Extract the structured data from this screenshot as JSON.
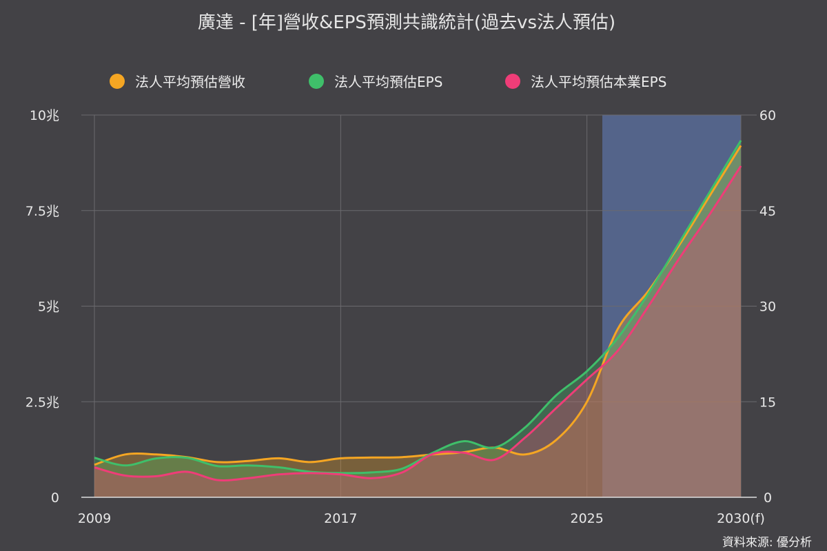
{
  "chart_data": {
    "type": "line",
    "title": "廣達 - [年]營收&EPS預測共識統計(過去vs法人預估)",
    "source": "資料來源: 優分析",
    "colors": {
      "background": "#434246",
      "grid": "#6b6a6e",
      "forecast_band": "#54648a",
      "revenue": "#f5a623",
      "eps": "#3fbf6a",
      "core_eps": "#ef3d78"
    },
    "legend": {
      "placement": "top-center",
      "items": [
        {
          "label": "法人平均預估營收",
          "color": "#f5a623"
        },
        {
          "label": "法人平均預估EPS",
          "color": "#3fbf6a"
        },
        {
          "label": "法人平均預估本業EPS",
          "color": "#ef3d78"
        }
      ]
    },
    "x_ticks": [
      {
        "label": "2009",
        "value": 2009
      },
      {
        "label": "2017",
        "value": 2017
      },
      {
        "label": "2025",
        "value": 2025
      },
      {
        "label": "2030(f)",
        "value": 2030
      }
    ],
    "xlim": [
      2009,
      2030
    ],
    "forecast_range": [
      2025.5,
      2030
    ],
    "y_left": {
      "ticks": [
        "0",
        "2.5兆",
        "5兆",
        "7.5兆",
        "10兆"
      ],
      "values": [
        0,
        2.5,
        5,
        7.5,
        10
      ],
      "lim": [
        0,
        10
      ],
      "unit": "兆"
    },
    "y_right": {
      "ticks": [
        "0",
        "15",
        "30",
        "45",
        "60"
      ],
      "values": [
        0,
        15,
        30,
        45,
        60
      ],
      "lim": [
        0,
        60
      ]
    },
    "series": [
      {
        "name": "法人平均預估營收",
        "axis": "left",
        "x": [
          2009,
          2010,
          2011,
          2012,
          2013,
          2014,
          2015,
          2016,
          2017,
          2018,
          2019,
          2020,
          2021,
          2022,
          2023,
          2024,
          2025,
          2026,
          2027,
          2028,
          2029,
          2030
        ],
        "values": [
          0.85,
          1.12,
          1.12,
          1.05,
          0.92,
          0.95,
          1.02,
          0.92,
          1.02,
          1.04,
          1.05,
          1.12,
          1.18,
          1.3,
          1.12,
          1.5,
          2.5,
          4.4,
          5.4,
          6.6,
          7.9,
          9.2
        ]
      },
      {
        "name": "法人平均預估EPS",
        "axis": "right",
        "x": [
          2009,
          2010,
          2011,
          2012,
          2013,
          2014,
          2015,
          2016,
          2017,
          2018,
          2019,
          2020,
          2021,
          2022,
          2023,
          2024,
          2025,
          2026,
          2027,
          2028,
          2029,
          2030
        ],
        "values": [
          6.2,
          5.0,
          6.1,
          6.2,
          4.9,
          5.0,
          4.7,
          4.0,
          3.8,
          3.9,
          4.5,
          7.0,
          8.8,
          7.8,
          11.0,
          16.0,
          19.8,
          25.0,
          32.0,
          40.0,
          48.0,
          56.0
        ]
      },
      {
        "name": "法人平均預估本業EPS",
        "axis": "right",
        "x": [
          2009,
          2010,
          2011,
          2012,
          2013,
          2014,
          2015,
          2016,
          2017,
          2018,
          2019,
          2020,
          2021,
          2022,
          2023,
          2024,
          2025,
          2026,
          2027,
          2028,
          2029,
          2030
        ],
        "values": [
          4.7,
          3.4,
          3.3,
          4.0,
          2.7,
          3.0,
          3.6,
          3.8,
          3.6,
          3.0,
          3.9,
          6.8,
          7.0,
          5.9,
          9.4,
          14.0,
          18.5,
          23.0,
          30.0,
          37.5,
          44.5,
          52.0
        ]
      }
    ]
  }
}
